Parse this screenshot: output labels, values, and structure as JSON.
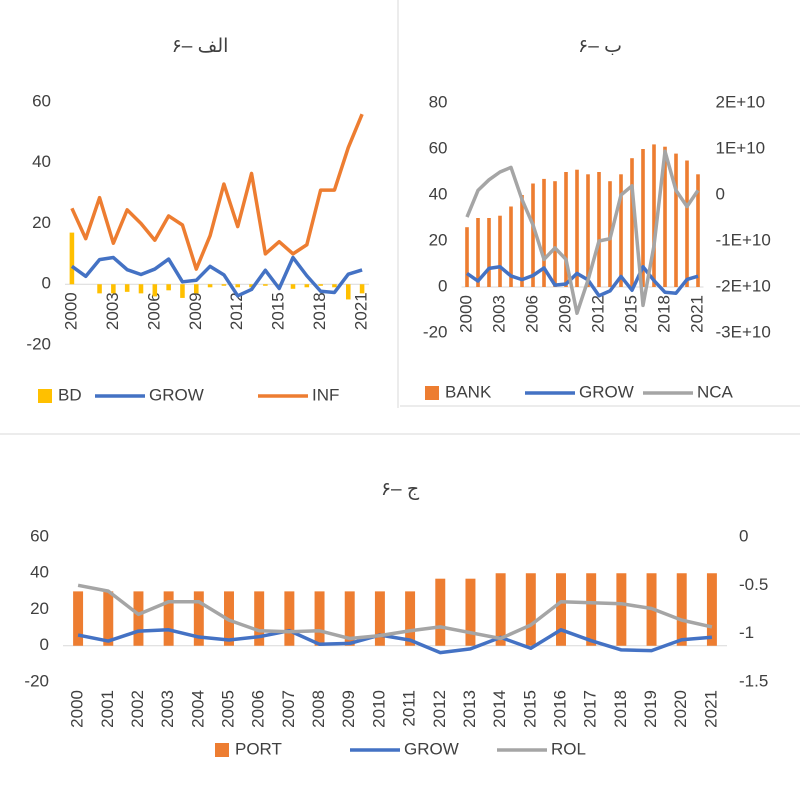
{
  "chart_data": [
    {
      "type": "combo",
      "title": "۶– الف",
      "categories": [
        "2000",
        null,
        null,
        "2003",
        null,
        null,
        "2006",
        null,
        null,
        "2009",
        null,
        null,
        "2012",
        null,
        null,
        "2015",
        null,
        null,
        "2018",
        null,
        null,
        "2021"
      ],
      "ylim": [
        -20,
        60
      ],
      "yticks": [
        -20,
        0,
        20,
        40,
        60
      ],
      "series": [
        {
          "name": "BD",
          "type": "bar",
          "color": "#ffc000",
          "values": [
            17,
            0,
            -3,
            -3,
            -2.5,
            -3,
            -4,
            -2,
            -4.5,
            -3,
            -1,
            -0.5,
            -1,
            -1,
            -0.5,
            -0.5,
            -1.5,
            -1,
            -0.5,
            -1,
            -5,
            -3
          ]
        },
        {
          "name": "GROW",
          "type": "line",
          "color": "#4472c4",
          "values": [
            5.9,
            2.6,
            8.1,
            8.8,
            4.8,
            3.2,
            5.0,
            8.3,
            0.8,
            1.3,
            5.9,
            3.1,
            -3.8,
            -1.7,
            4.6,
            -1.4,
            8.8,
            2.8,
            -2.3,
            -2.7,
            3.3,
            4.7
          ]
        },
        {
          "name": "INF",
          "type": "line",
          "color": "#ed7d31",
          "values": [
            25,
            15,
            28.5,
            13.5,
            24.5,
            20,
            14.5,
            22.5,
            19.5,
            5,
            16,
            33,
            19,
            36.5,
            10,
            14,
            10,
            13,
            31,
            31,
            45,
            56
          ]
        }
      ]
    },
    {
      "type": "combo",
      "title": "۶– ب",
      "categories": [
        "2000",
        null,
        null,
        "2003",
        null,
        null,
        "2006",
        null,
        null,
        "2009",
        null,
        null,
        "2012",
        null,
        null,
        "2015",
        null,
        null,
        "2018",
        null,
        null,
        "2021"
      ],
      "ylim": [
        -20,
        80
      ],
      "yticks": [
        -20,
        0,
        20,
        40,
        60,
        80
      ],
      "y2lim": [
        -30000000000,
        20000000000
      ],
      "y2ticks": [
        {
          "value": -30000000000,
          "label": "-3E+10"
        },
        {
          "value": -20000000000,
          "label": "-2E+10"
        },
        {
          "value": -10000000000,
          "label": "-1E+10"
        },
        0,
        {
          "value": 10000000000,
          "label": "1E+10"
        },
        {
          "value": 20000000000,
          "label": "2E+10"
        }
      ],
      "series": [
        {
          "name": "BANK",
          "type": "bar",
          "color": "#ed7d31",
          "values": [
            26,
            30,
            30,
            31,
            35,
            40,
            45,
            47,
            46,
            50,
            51,
            49,
            50,
            46,
            49,
            56,
            60,
            62,
            61,
            58,
            55,
            49
          ]
        },
        {
          "name": "GROW",
          "type": "line",
          "color": "#4472c4",
          "values": [
            5.9,
            2.6,
            8.1,
            8.8,
            4.8,
            3.2,
            5.0,
            8.3,
            0.8,
            1.3,
            5.9,
            3.1,
            -3.8,
            -1.7,
            4.6,
            -1.4,
            8.8,
            2.8,
            -2.3,
            -2.7,
            3.3,
            4.7
          ]
        },
        {
          "name": "NCA",
          "type": "line",
          "axis": "y2",
          "color": "#a5a5a5",
          "values": [
            -4800000000,
            1000000000,
            3300000000,
            5000000000,
            6000000000,
            -1000000000,
            -6500000000,
            -14000000000,
            -11500000000,
            -14000000000,
            -25700000000,
            -18500000000,
            -10000000000,
            -9500000000,
            0,
            2000000000,
            -24000000000,
            -11000000000,
            9500000000,
            1000000000,
            -2500000000,
            1000000000
          ]
        }
      ]
    },
    {
      "type": "combo",
      "title": "۶– ج",
      "categories": [
        "2000",
        "2001",
        "2002",
        "2003",
        "2004",
        "2005",
        "2006",
        "2007",
        "2008",
        "2009",
        "2010",
        "2011",
        "2012",
        "2013",
        "2014",
        "2015",
        "2016",
        "2017",
        "2018",
        "2019",
        "2020",
        "2021"
      ],
      "ylim": [
        -20,
        60
      ],
      "yticks": [
        -20,
        0,
        20,
        40,
        60
      ],
      "y2lim": [
        -1.5,
        0
      ],
      "y2ticks": [
        -1.5,
        -1,
        -0.5,
        0
      ],
      "series": [
        {
          "name": "PORT",
          "type": "bar",
          "color": "#ed7d31",
          "values": [
            30,
            30,
            30,
            30,
            30,
            30,
            30,
            30,
            30,
            30,
            30,
            30,
            37,
            37,
            40,
            40,
            40,
            40,
            40,
            40,
            40,
            40
          ]
        },
        {
          "name": "GROW",
          "type": "line",
          "color": "#4472c4",
          "values": [
            5.9,
            2.6,
            8.1,
            8.8,
            4.8,
            3.2,
            5.0,
            8.3,
            0.8,
            1.3,
            5.9,
            3.1,
            -3.8,
            -1.7,
            4.6,
            -1.4,
            8.8,
            2.8,
            -2.3,
            -2.7,
            3.3,
            4.7
          ]
        },
        {
          "name": "ROL",
          "type": "line",
          "axis": "y2",
          "color": "#a5a5a5",
          "values": [
            -0.5,
            -0.56,
            -0.8,
            -0.67,
            -0.67,
            -0.86,
            -0.97,
            -0.98,
            -0.97,
            -1.05,
            -1.02,
            -0.97,
            -0.93,
            -0.99,
            -1.05,
            -0.91,
            -0.67,
            -0.68,
            -0.69,
            -0.74,
            -0.86,
            -0.93
          ]
        }
      ]
    }
  ]
}
